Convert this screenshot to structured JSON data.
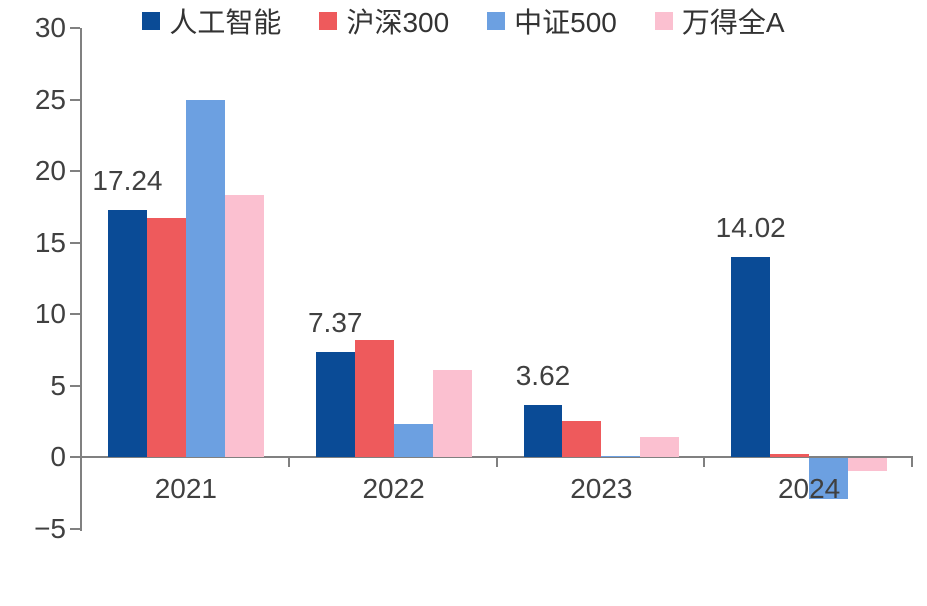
{
  "chart_data": {
    "type": "bar",
    "title": "",
    "xlabel": "",
    "ylabel": "",
    "categories": [
      "2021",
      "2022",
      "2023",
      "2024"
    ],
    "series": [
      {
        "name": "人工智能",
        "color": "#0A4B96",
        "values": [
          17.24,
          7.37,
          3.62,
          14.02
        ]
      },
      {
        "name": "沪深300",
        "color": "#EE5A5C",
        "values": [
          16.7,
          8.2,
          2.5,
          0.2
        ]
      },
      {
        "name": "中证500",
        "color": "#6CA0E1",
        "values": [
          25.0,
          2.3,
          0.05,
          -2.9
        ]
      },
      {
        "name": "万得全A",
        "color": "#FBC0D0",
        "values": [
          18.3,
          6.1,
          1.4,
          -0.9
        ]
      }
    ],
    "data_labels": {
      "series_index": 0,
      "texts": [
        "17.24",
        "7.37",
        "3.62",
        "14.02"
      ]
    },
    "y_ticks": [
      {
        "value": 30,
        "label": "30"
      },
      {
        "value": 25,
        "label": "25"
      },
      {
        "value": 20,
        "label": "20"
      },
      {
        "value": 15,
        "label": "15"
      },
      {
        "value": 10,
        "label": "10"
      },
      {
        "value": 5,
        "label": "5"
      },
      {
        "value": 0,
        "label": "0"
      },
      {
        "value": -5,
        "label": "−5"
      }
    ],
    "ylim": [
      -5,
      30
    ],
    "grid": false,
    "legend_position": "bottom",
    "axis_color": "#808080",
    "text_color": "#404040"
  }
}
